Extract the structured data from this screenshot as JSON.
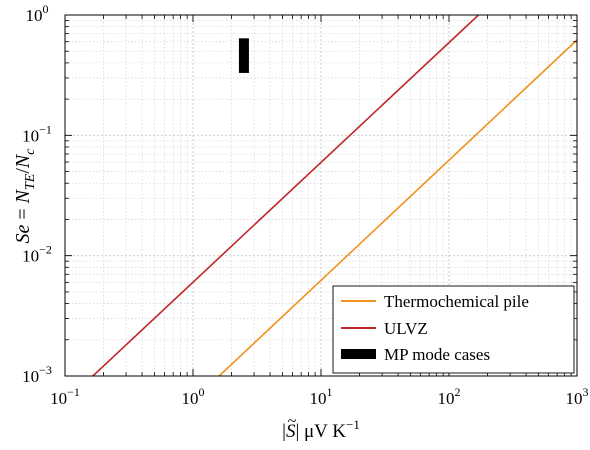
{
  "chart_data": {
    "type": "line",
    "xscale": "log",
    "yscale": "log",
    "xlim": [
      0.1,
      1000
    ],
    "ylim": [
      0.001,
      1
    ],
    "grid": true,
    "legend_placement": "bottom-right",
    "xlabel_parts": {
      "pre": "|",
      "sym": "S",
      "post": "| μV K",
      "sup": "−1"
    },
    "ylabel_parts": {
      "a": "Se",
      "eq": " = ",
      "b": "N",
      "bsub": "TE",
      "slash": "/",
      "c": "N",
      "csub": "c"
    },
    "x_ticks": [
      {
        "value": 0.1,
        "base": "10",
        "exp": "−1"
      },
      {
        "value": 1,
        "base": "10",
        "exp": "0"
      },
      {
        "value": 10,
        "base": "10",
        "exp": "1"
      },
      {
        "value": 100,
        "base": "10",
        "exp": "2"
      },
      {
        "value": 1000,
        "base": "10",
        "exp": "3"
      }
    ],
    "y_ticks": [
      {
        "value": 0.001,
        "base": "10",
        "exp": "−3"
      },
      {
        "value": 0.01,
        "base": "10",
        "exp": "−2"
      },
      {
        "value": 0.1,
        "base": "10",
        "exp": "−1"
      },
      {
        "value": 1,
        "base": "10",
        "exp": "0"
      }
    ],
    "series": [
      {
        "name": "Thermochemical pile",
        "color": "#F0921E",
        "style": "line",
        "x": [
          1.6,
          1000
        ],
        "y": [
          0.001,
          0.62
        ]
      },
      {
        "name": "ULVZ",
        "color": "#C1272D",
        "style": "line",
        "x": [
          0.165,
          170
        ],
        "y": [
          0.001,
          1.0
        ]
      },
      {
        "name": "MP mode cases",
        "color": "#000000",
        "style": "bar",
        "x": [
          2.5,
          2.5
        ],
        "y": [
          0.33,
          0.64
        ]
      }
    ]
  }
}
